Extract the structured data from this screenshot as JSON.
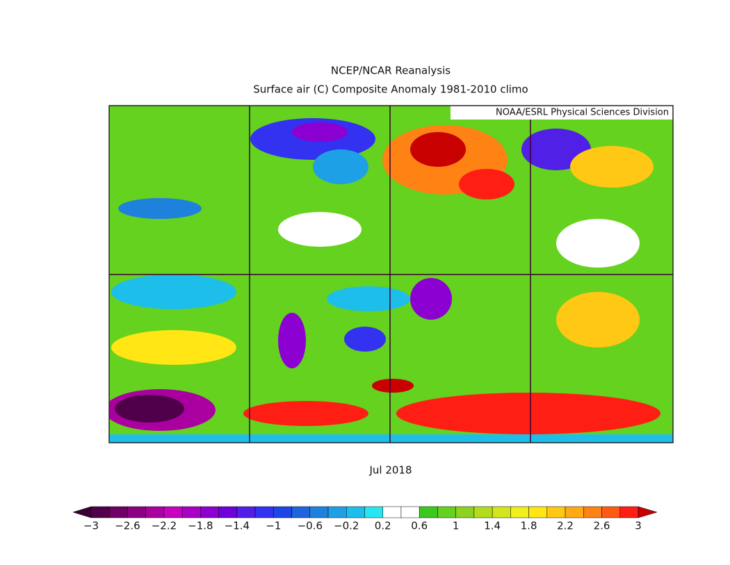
{
  "header": {
    "title": "NCEP/NCAR Reanalysis",
    "subtitle": "Surface air (C) Composite Anomaly 1981-2010 climo"
  },
  "map": {
    "credit": "NOAA/ESRL Physical Sciences Division",
    "date": "Jul 2018"
  },
  "colorbar": {
    "labels": [
      "−3",
      "−2.6",
      "−2.2",
      "−1.8",
      "−1.4",
      "−1",
      "−0.6",
      "−0.2",
      "0.2",
      "0.6",
      "1",
      "1.4",
      "1.8",
      "2.2",
      "2.6",
      "3"
    ],
    "colors": [
      "#50004a",
      "#6e0066",
      "#8c0082",
      "#aa00a0",
      "#c800c0",
      "#aa00c8",
      "#8c00d2",
      "#6e00dc",
      "#5020e6",
      "#3232f0",
      "#1e46e6",
      "#1e64dc",
      "#1e82dc",
      "#1ea0e6",
      "#1ebeeb",
      "#28e6f0",
      "#ffffff",
      "#ffffff",
      "#3cc81e",
      "#64d21e",
      "#8cd21e",
      "#b4dc1e",
      "#d2e61e",
      "#f0f01e",
      "#ffe614",
      "#ffc814",
      "#ffaa14",
      "#ff8214",
      "#ff5a14",
      "#ff1e14"
    ],
    "low_color": "#3c0032",
    "high_color": "#c80000"
  }
}
